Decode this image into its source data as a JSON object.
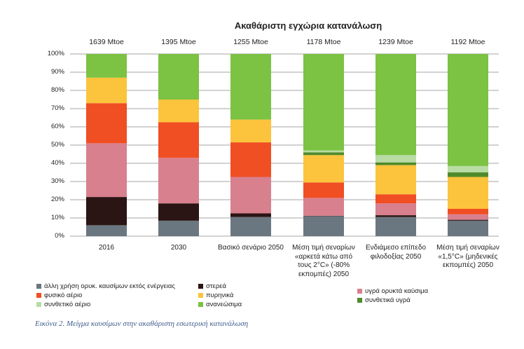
{
  "chart_data": {
    "type": "bar",
    "stacked": true,
    "percent": true,
    "title": "Ακαθάριστη εγχώρια κατανάλωση",
    "totals": [
      "1639 Mtoe",
      "1395 Mtoe",
      "1255 Mtoe",
      "1178 Mtoe",
      "1239 Mtoe",
      "1192 Mtoe"
    ],
    "categories": [
      "2016",
      "2030",
      "Βασικό σενάριο 2050",
      "Μέση τιμή σεναρίων «αρκετά κάτω από τους 2°C» (-80% εκπομπές) 2050",
      "Ενδιάμεσο επίπεδο φιλοδοξίας 2050",
      "Μέση τιμή σεναρίων «1,5°C» (μηδενικές εκπομπές) 2050"
    ],
    "yticks": [
      "0%",
      "10%",
      "20%",
      "30%",
      "40%",
      "50%",
      "60%",
      "70%",
      "80%",
      "90%",
      "100%"
    ],
    "ylim": [
      0,
      100
    ],
    "grid": true,
    "legend_position": "bottom",
    "series": [
      {
        "name": "άλλη χρήση ορυκ. καυσίμων εκτός ενέργειας",
        "color": "#6b7780",
        "values": [
          6,
          8.5,
          10.5,
          11,
          10.5,
          8.5
        ]
      },
      {
        "name": "στερεά",
        "color": "#2b1414",
        "values": [
          15.5,
          9.5,
          2,
          0.2,
          1,
          0.5
        ]
      },
      {
        "name": "υγρά ορυκτά καύσιμα",
        "color": "#d8808e",
        "values": [
          29.5,
          25,
          20,
          9.8,
          6.5,
          3
        ]
      },
      {
        "name": "φυσικό αέριο",
        "color": "#f04e23",
        "values": [
          22,
          19.5,
          19,
          8.5,
          5,
          3
        ]
      },
      {
        "name": "πυρηνικά",
        "color": "#fcc43c",
        "values": [
          14,
          12.5,
          12.5,
          15,
          16,
          17.5
        ]
      },
      {
        "name": "συνθετικά υγρά",
        "color": "#4f8a2b",
        "values": [
          0,
          0,
          0,
          1.5,
          1.5,
          2.5
        ]
      },
      {
        "name": "συνθετικό αέριο",
        "color": "#b8dca4",
        "values": [
          0,
          0,
          0,
          1,
          4,
          3.5
        ]
      },
      {
        "name": "ανανεώσιμα",
        "color": "#7cc243",
        "values": [
          13,
          25,
          36,
          53,
          55.5,
          61.5
        ]
      }
    ]
  },
  "caption": "Εικόνα 2. Μείγμα καυσίμων στην ακαθάριστη εσωτερική κατανάλωση"
}
